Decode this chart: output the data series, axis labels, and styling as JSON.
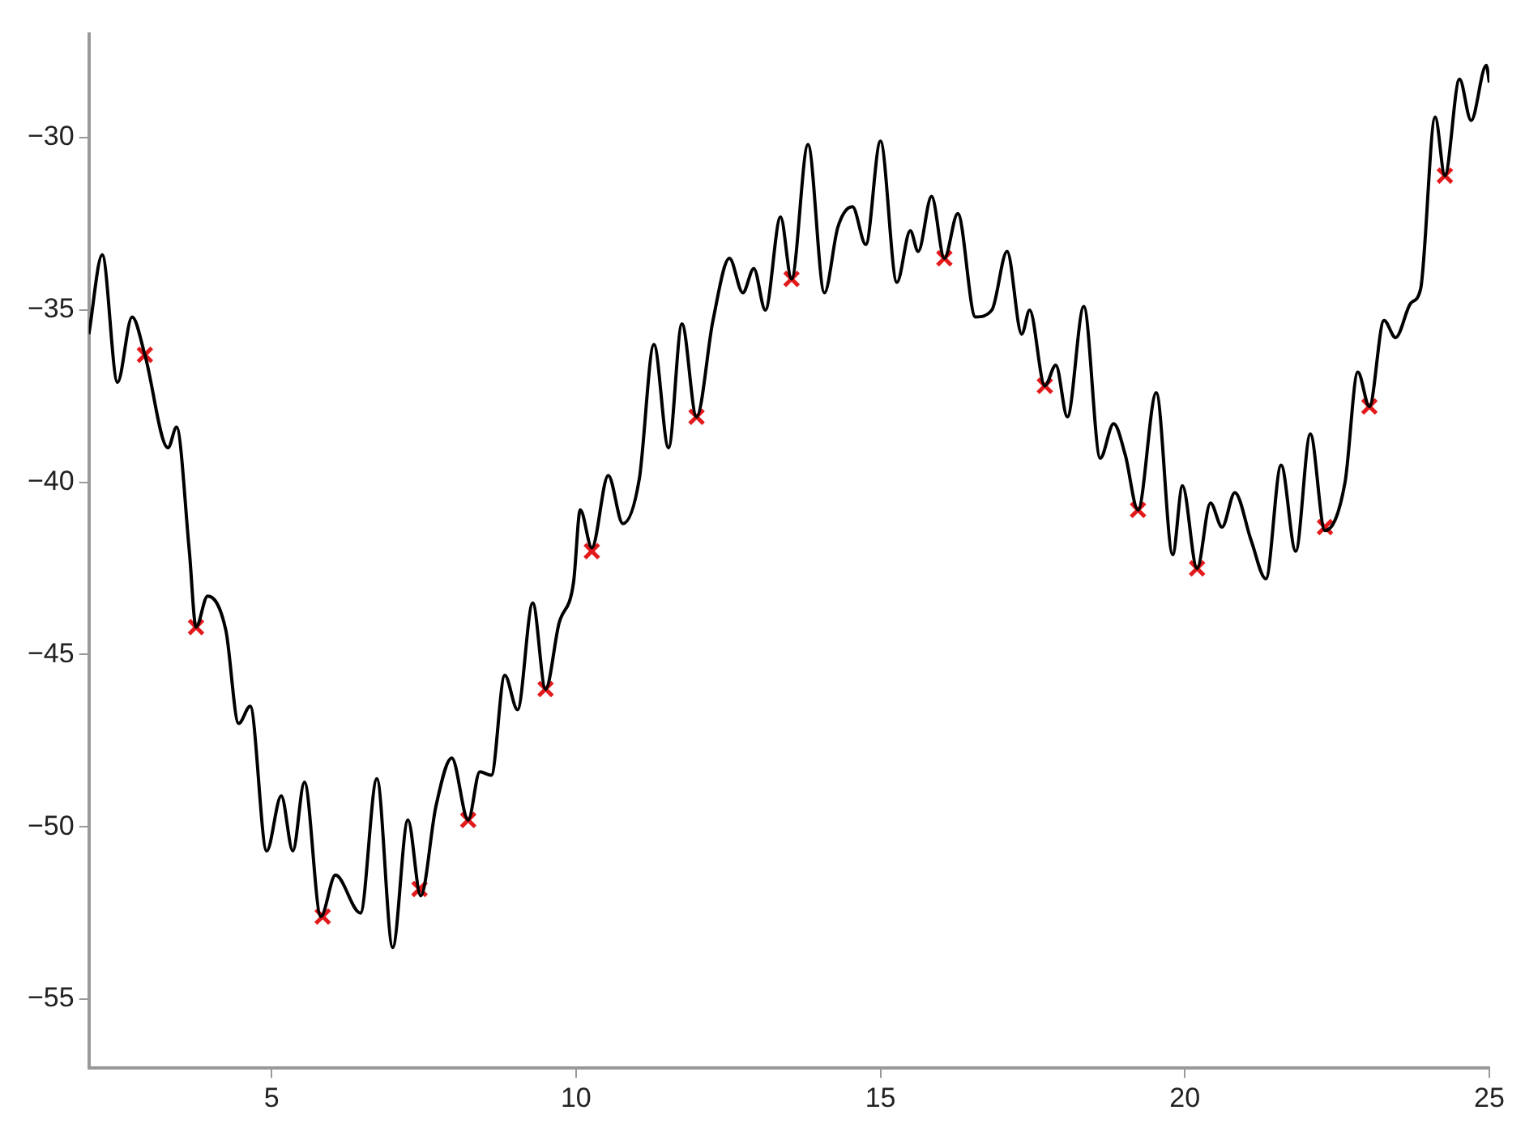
{
  "chart_data": {
    "type": "line",
    "xlim": [
      2,
      25
    ],
    "ylim": [
      -57,
      -27
    ],
    "xticks": [
      5,
      10,
      15,
      20,
      25
    ],
    "yticks": [
      -55,
      -50,
      -45,
      -40,
      -35,
      -30
    ],
    "grid": false,
    "legend": false,
    "series": [
      {
        "color": "#000000",
        "marker": "none",
        "line_style": "solid",
        "x": [
          2.0,
          2.22,
          2.47,
          2.71,
          2.92,
          3.3,
          3.44,
          3.65,
          3.76,
          3.95,
          4.25,
          4.46,
          4.65,
          4.92,
          5.16,
          5.35,
          5.54,
          5.81,
          6.05,
          6.46,
          6.73,
          6.99,
          7.24,
          7.45,
          7.7,
          7.96,
          8.23,
          8.42,
          8.61,
          8.83,
          9.04,
          9.29,
          9.5,
          9.72,
          9.96,
          10.07,
          10.26,
          10.53,
          10.77,
          11.04,
          11.28,
          11.52,
          11.74,
          11.98,
          12.25,
          12.52,
          12.74,
          12.92,
          13.11,
          13.36,
          13.54,
          13.81,
          14.08,
          14.3,
          14.54,
          14.76,
          15.0,
          15.27,
          15.49,
          15.62,
          15.84,
          16.05,
          16.27,
          16.56,
          16.83,
          17.08,
          17.32,
          17.45,
          17.7,
          17.88,
          18.07,
          18.34,
          18.61,
          18.83,
          19.02,
          19.23,
          19.53,
          19.8,
          19.96,
          20.2,
          20.42,
          20.61,
          20.82,
          21.09,
          21.33,
          21.58,
          21.82,
          22.06,
          22.3,
          22.63,
          22.84,
          23.03,
          23.27,
          23.46,
          23.71,
          23.87,
          24.11,
          24.27,
          24.51,
          24.7,
          24.95,
          25.0
        ],
        "values": [
          -35.7,
          -33.4,
          -37.1,
          -35.2,
          -36.3,
          -39.0,
          -38.4,
          -42.0,
          -44.2,
          -43.3,
          -44.3,
          -47.0,
          -46.5,
          -50.7,
          -49.1,
          -50.7,
          -48.7,
          -52.6,
          -51.4,
          -52.5,
          -48.6,
          -53.5,
          -49.8,
          -52.0,
          -49.4,
          -48.0,
          -49.8,
          -48.4,
          -48.5,
          -45.6,
          -46.6,
          -43.5,
          -46.0,
          -44.1,
          -42.9,
          -40.8,
          -41.9,
          -39.8,
          -41.2,
          -39.9,
          -36.0,
          -39.0,
          -35.4,
          -38.1,
          -35.3,
          -33.5,
          -34.5,
          -33.8,
          -35.0,
          -32.3,
          -34.1,
          -30.2,
          -34.5,
          -32.6,
          -32.0,
          -33.1,
          -30.1,
          -34.2,
          -32.7,
          -33.3,
          -31.7,
          -33.5,
          -32.2,
          -35.2,
          -35.0,
          -33.3,
          -35.7,
          -35.0,
          -37.2,
          -36.6,
          -38.1,
          -34.9,
          -39.3,
          -38.3,
          -39.2,
          -40.8,
          -37.4,
          -42.1,
          -40.1,
          -42.5,
          -40.6,
          -41.3,
          -40.3,
          -41.7,
          -42.8,
          -39.5,
          -42.0,
          -38.6,
          -41.4,
          -40.0,
          -36.8,
          -37.8,
          -35.3,
          -35.8,
          -34.8,
          -34.4,
          -29.4,
          -31.1,
          -28.3,
          -29.5,
          -27.9,
          -28.4
        ]
      },
      {
        "type": "scatter",
        "color": "#e31a1c",
        "marker": "cross",
        "x": [
          2.92,
          3.76,
          5.84,
          7.43,
          8.23,
          9.5,
          10.26,
          11.98,
          13.54,
          16.05,
          17.7,
          19.23,
          20.2,
          22.3,
          23.03,
          24.27
        ],
        "values": [
          -36.3,
          -44.2,
          -52.6,
          -51.8,
          -49.8,
          -46.0,
          -42.0,
          -38.1,
          -34.1,
          -33.5,
          -37.2,
          -40.8,
          -42.5,
          -41.3,
          -37.8,
          -31.1
        ]
      }
    ]
  }
}
